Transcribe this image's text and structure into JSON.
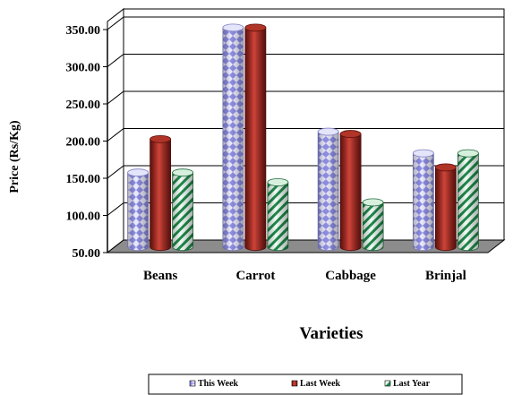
{
  "chart_data": {
    "type": "bar",
    "title": "",
    "xlabel": "Varieties",
    "ylabel": "Price (Rs/Kg)",
    "ylim": [
      50,
      350
    ],
    "yticks": [
      "50.00",
      "100.00",
      "150.00",
      "200.00",
      "250.00",
      "300.00",
      "350.00"
    ],
    "categories": [
      "Beans",
      "Carrot",
      "Cabbage",
      "Brinjal"
    ],
    "series": [
      {
        "name": "This Week",
        "values": [
          150,
          345,
          205,
          176
        ],
        "color": "#c9c9f5",
        "pattern": "diamond"
      },
      {
        "name": "Last Week",
        "values": [
          195,
          345,
          202,
          157
        ],
        "color": "#c0392b",
        "pattern": "solid"
      },
      {
        "name": "Last Year",
        "values": [
          150,
          137,
          110,
          176
        ],
        "color": "#e8f7ee",
        "pattern": "stripe"
      }
    ],
    "grid": true,
    "legend": "bottom",
    "colors": {
      "floor": "#8c8c8c",
      "axis": "#000000"
    }
  }
}
